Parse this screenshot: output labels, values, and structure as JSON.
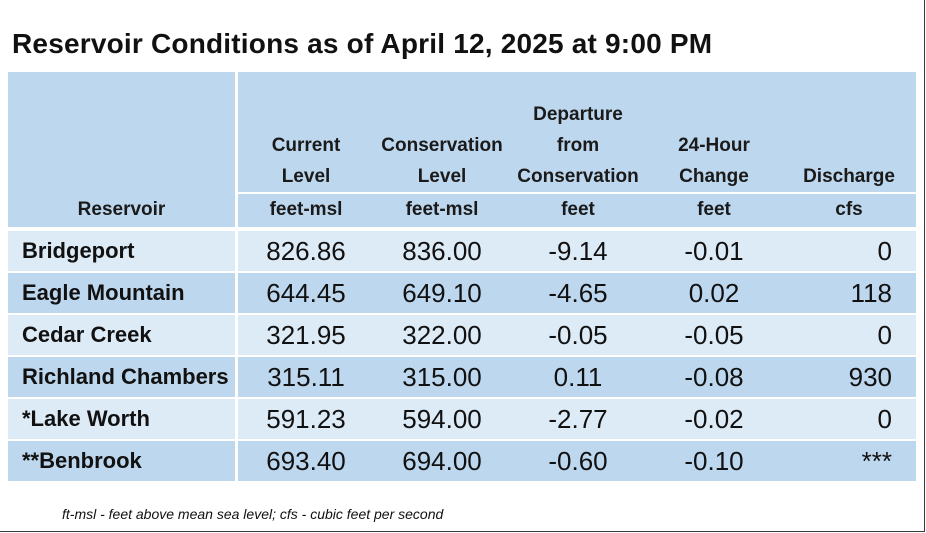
{
  "title": "Reservoir Conditions as of April 12, 2025 at 9:00 PM",
  "table": {
    "headers": [
      {
        "lines": [
          "Reservoir"
        ],
        "unit": ""
      },
      {
        "lines": [
          "Current",
          "Level"
        ],
        "unit": "feet-msl"
      },
      {
        "lines": [
          "Conservation",
          "Level"
        ],
        "unit": "feet-msl"
      },
      {
        "lines": [
          "Departure",
          "from",
          "Conservation"
        ],
        "unit": "feet"
      },
      {
        "lines": [
          "24-Hour",
          "Change"
        ],
        "unit": "feet"
      },
      {
        "lines": [
          "Discharge"
        ],
        "unit": "cfs"
      }
    ],
    "rows": [
      {
        "name": "Bridgeport",
        "current": "826.86",
        "conservation": "836.00",
        "departure": "-9.14",
        "change": "-0.01",
        "discharge": "0"
      },
      {
        "name": "Eagle Mountain",
        "current": "644.45",
        "conservation": "649.10",
        "departure": "-4.65",
        "change": "0.02",
        "discharge": "118"
      },
      {
        "name": "Cedar Creek",
        "current": "321.95",
        "conservation": "322.00",
        "departure": "-0.05",
        "change": "-0.05",
        "discharge": "0"
      },
      {
        "name": "Richland Chambers",
        "current": "315.11",
        "conservation": "315.00",
        "departure": "0.11",
        "change": "-0.08",
        "discharge": "930"
      },
      {
        "name": "*Lake Worth",
        "current": "591.23",
        "conservation": "594.00",
        "departure": "-2.77",
        "change": "-0.02",
        "discharge": "0"
      },
      {
        "name": "**Benbrook",
        "current": "693.40",
        "conservation": "694.00",
        "departure": "-0.60",
        "change": "-0.10",
        "discharge": "***"
      }
    ]
  },
  "footnote": "ft-msl - feet above mean sea level; cfs - cubic feet per second",
  "colors": {
    "header_bg": "#bdd7ee",
    "row_light": "#ddebf7",
    "row_dark": "#bdd7ee"
  }
}
